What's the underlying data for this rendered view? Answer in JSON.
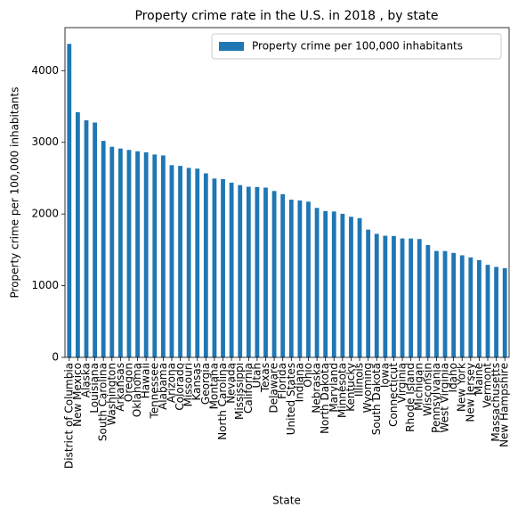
{
  "chart_data": {
    "type": "bar",
    "title": "Property crime rate in the U.S. in 2018 , by state",
    "x_label": "State",
    "y_label": "Property crime per 100,000 inhabitants",
    "categories": [
      "District of Columbia",
      "New Mexico",
      "Alaska",
      "Louisiana",
      "South Carolina",
      "Washington",
      "Arkansas",
      "Oregon",
      "Oklahoma",
      "Hawaii",
      "Tennessee",
      "Alabama",
      "Arizona",
      "Colorado",
      "Missouri",
      "Kansas",
      "Georgia",
      "Montana",
      "North Carolina",
      "Nevada",
      "Mississippi",
      "California",
      "Utah",
      "Texas",
      "Delaware",
      "Florida",
      "United States",
      "Indiana",
      "Ohio",
      "Nebraska",
      "North Dakota",
      "Maryland",
      "Minnesota",
      "Kentucky",
      "Illinois",
      "Wyoming",
      "South Dakota",
      "Iowa",
      "Connecticut",
      "Virginia",
      "Rhode Island",
      "Michigan",
      "Wisconsin",
      "Pennsylvania",
      "West Virginia",
      "Idaho",
      "New York",
      "New Jersey",
      "Maine",
      "Vermont",
      "Massachusetts",
      "New Hampshire"
    ],
    "series": [
      {
        "name": "Property crime per 100,000 inhabitants",
        "color": "#1f77b4",
        "values": [
          4373,
          3420,
          3307,
          3276,
          3020,
          2938,
          2913,
          2894,
          2875,
          2861,
          2830,
          2817,
          2681,
          2671,
          2643,
          2633,
          2567,
          2495,
          2487,
          2437,
          2403,
          2380,
          2377,
          2368,
          2321,
          2277,
          2200,
          2189,
          2172,
          2085,
          2041,
          2035,
          2003,
          1961,
          1942,
          1782,
          1723,
          1697,
          1693,
          1659,
          1658,
          1651,
          1566,
          1484,
          1483,
          1457,
          1424,
          1395,
          1357,
          1291,
          1262,
          1245
        ]
      }
    ],
    "ylim": [
      0,
      4600
    ],
    "yticks": [
      0,
      1000,
      2000,
      3000,
      4000
    ],
    "legend": "upper right"
  }
}
